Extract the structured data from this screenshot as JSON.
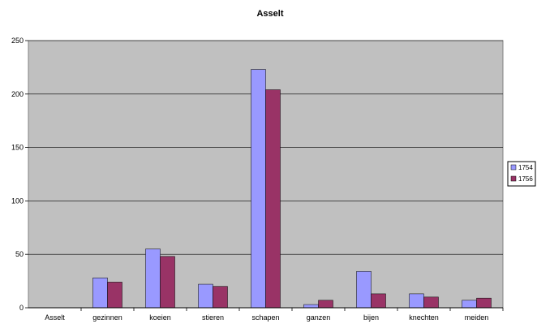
{
  "chart_data": {
    "type": "bar",
    "title": "Asselt",
    "xlabel": "",
    "ylabel": "",
    "ylim": [
      0,
      250
    ],
    "yticks": [
      0,
      50,
      100,
      150,
      200,
      250
    ],
    "grid": true,
    "legend_position": "right",
    "categories": [
      "Asselt",
      "gezinnen",
      "koeien",
      "stieren",
      "schapen",
      "ganzen",
      "bijen",
      "knechten",
      "meiden"
    ],
    "series": [
      {
        "name": "1754",
        "color": "#9999ff",
        "values": [
          0,
          28,
          55,
          22,
          223,
          3,
          34,
          13,
          7
        ]
      },
      {
        "name": "1756",
        "color": "#993366",
        "values": [
          0,
          24,
          48,
          20,
          204,
          7,
          13,
          10,
          9
        ]
      }
    ],
    "plot_background": "#c0c0c0"
  }
}
